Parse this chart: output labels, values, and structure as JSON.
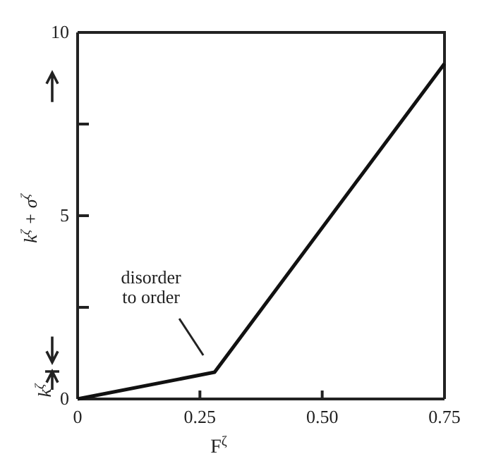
{
  "chart_data": {
    "type": "line",
    "xlabel": "F$^{ζ}$",
    "ylabel": "k$^{ζ}$ + σ$^{ζ}$",
    "x": [
      0,
      0.28,
      0.75
    ],
    "series": [
      {
        "color": "#111111",
        "values": [
          0,
          0.73,
          9.15
        ]
      }
    ],
    "xlim": [
      0,
      0.75
    ],
    "ylim": [
      0,
      10
    ],
    "xticks": [
      {
        "value": 0,
        "label": "0"
      },
      {
        "value": 0.25,
        "label": "0.25"
      },
      {
        "value": 0.5,
        "label": "0.50"
      },
      {
        "value": 0.75,
        "label": "0.75"
      }
    ],
    "yticks": [
      {
        "value": 0,
        "label": "0"
      },
      {
        "value": 2.5,
        "label": null
      },
      5,
      {
        "value": 7.5,
        "label": null
      },
      10
    ],
    "annotations": [
      "disorder to order",
      "k$^{ζ}$"
    ],
    "line_style": "solid"
  }
}
